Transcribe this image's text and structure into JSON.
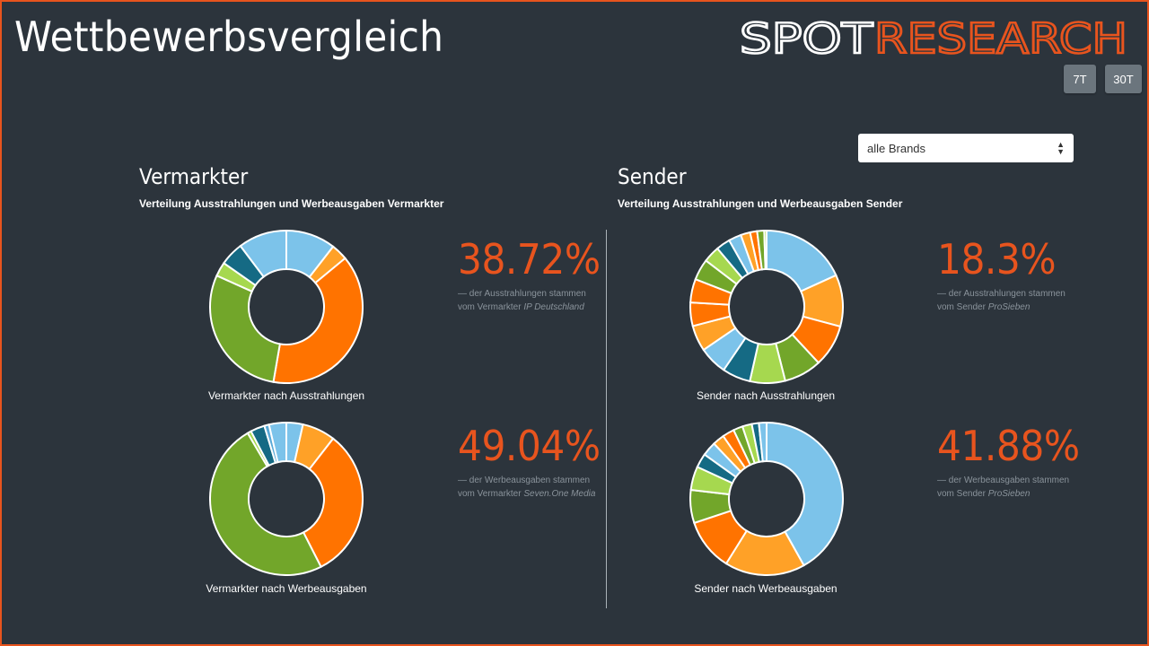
{
  "header": {
    "title": "Wettbewerbsvergleich",
    "logo_part1": "SPOT",
    "logo_part2": "RESEARCH",
    "btn_7t": "7T",
    "btn_30t": "30T"
  },
  "filter": {
    "selected": "alle Brands"
  },
  "colors": {
    "accent": "#e8541e",
    "background": "#2c343c",
    "palette": [
      "#7cc3ea",
      "#ffa127",
      "#ff7300",
      "#72a62a",
      "#a6d84f",
      "#156a84",
      "#5aaad8",
      "#3f8fb3"
    ]
  },
  "vermarkter": {
    "title": "Vermarkter",
    "subtitle": "Verteilung Ausstrahlungen und Werbeausgaben Vermarkter",
    "ausstrahlungen": {
      "label": "Vermarkter nach Ausstrahlungen",
      "pct": "38.72%",
      "note_prefix": "— der Ausstrahlungen stammen",
      "note_line2": "vom Vermarkter",
      "note_name": "IP Deutschland"
    },
    "werbeausgaben": {
      "label": "Vermarkter nach Werbeausgaben",
      "pct": "49.04%",
      "note_prefix": "— der Werbeausgaben stammen",
      "note_line2": "vom Vermarkter",
      "note_name": "Seven.One Media"
    }
  },
  "sender": {
    "title": "Sender",
    "subtitle": "Verteilung Ausstrahlungen und Werbeausgaben Sender",
    "ausstrahlungen": {
      "label": "Sender nach Ausstrahlungen",
      "pct": "18.3%",
      "note_prefix": "— der Ausstrahlungen stammen",
      "note_line2": "vom Sender",
      "note_name": "ProSieben"
    },
    "werbeausgaben": {
      "label": "Sender nach Werbeausgaben",
      "pct": "41.88%",
      "note_prefix": "— der Werbeausgaben stammen",
      "note_line2": "vom Sender",
      "note_name": "ProSieben"
    }
  },
  "chart_data": [
    {
      "type": "pie",
      "title": "Vermarkter nach Ausstrahlungen",
      "values": [
        10.5,
        3.5,
        38.72,
        29.0,
        3.0,
        5.0,
        10.28
      ],
      "colors": [
        "#7cc3ea",
        "#ffa127",
        "#ff7300",
        "#72a62a",
        "#a6d84f",
        "#156a84",
        "#7cc3ea"
      ]
    },
    {
      "type": "pie",
      "title": "Vermarkter nach Werbeausgaben",
      "values": [
        3.5,
        7.0,
        32.0,
        49.04,
        0.8,
        3.0,
        1.0,
        3.66
      ],
      "colors": [
        "#7cc3ea",
        "#ffa127",
        "#ff7300",
        "#72a62a",
        "#a6d84f",
        "#156a84",
        "#5aaad8",
        "#7cc3ea"
      ]
    },
    {
      "type": "pie",
      "title": "Sender nach Ausstrahlungen",
      "values": [
        18.3,
        11.0,
        9.0,
        8.0,
        7.5,
        6.0,
        6.0,
        5.5,
        5.0,
        5.0,
        4.5,
        3.5,
        3.0,
        2.7,
        2.0,
        1.5,
        1.5,
        0.5
      ],
      "colors": [
        "#7cc3ea",
        "#ffa127",
        "#ff7300",
        "#72a62a",
        "#a6d84f",
        "#156a84",
        "#7cc3ea",
        "#ffa127",
        "#ff7300",
        "#ff7300",
        "#72a62a",
        "#a6d84f",
        "#156a84",
        "#7cc3ea",
        "#ffa127",
        "#ff7300",
        "#72a62a",
        "#a6d84f"
      ]
    },
    {
      "type": "pie",
      "title": "Sender nach Werbeausgaben",
      "values": [
        41.88,
        17.0,
        11.0,
        7.0,
        5.0,
        3.0,
        3.0,
        2.5,
        2.5,
        2.0,
        2.0,
        1.5,
        1.62
      ],
      "colors": [
        "#7cc3ea",
        "#ffa127",
        "#ff7300",
        "#72a62a",
        "#a6d84f",
        "#156a84",
        "#7cc3ea",
        "#ffa127",
        "#ff7300",
        "#72a62a",
        "#a6d84f",
        "#156a84",
        "#7cc3ea"
      ]
    }
  ]
}
